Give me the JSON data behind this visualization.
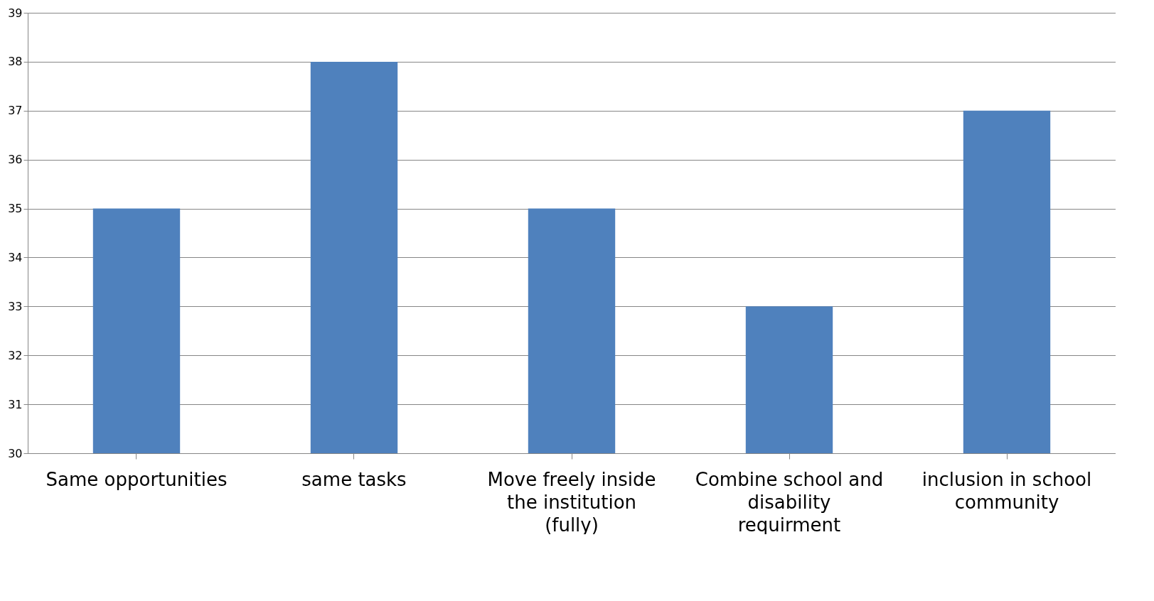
{
  "chart_data": {
    "type": "bar",
    "categories": [
      "Same opportunities",
      "same tasks",
      "Move freely inside the institution (fully)",
      "Combine school and  disability requirment",
      "inclusion in school community"
    ],
    "values": [
      35,
      38,
      35,
      33,
      37
    ],
    "color": "#4f81bd",
    "ylim": [
      30,
      39
    ],
    "yticks": [
      30,
      31,
      32,
      33,
      34,
      35,
      36,
      37,
      38,
      39
    ],
    "grid": "y"
  }
}
